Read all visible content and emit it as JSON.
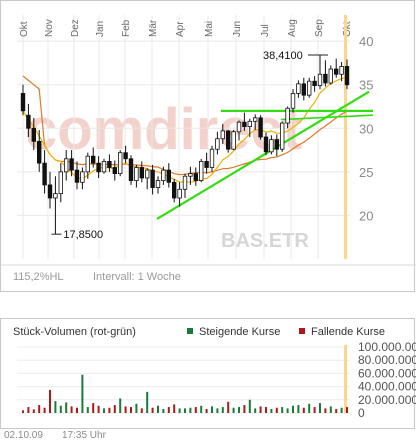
{
  "chart_data": [
    {
      "type": "candlestick",
      "months": [
        "Okt",
        "Nov",
        "Dez",
        "Jan",
        "Feb",
        "Mär",
        "Apr",
        "Mai",
        "Jun",
        "Jul",
        "Aug",
        "Sep",
        "Okt"
      ],
      "y_ticks": [
        "40",
        "35",
        "30",
        "25",
        "20"
      ],
      "ylim": [
        15,
        43
      ],
      "annotations": {
        "high": "38,4100",
        "low": "17,8500"
      },
      "watermark": {
        "brand": "comdirect",
        "symbol": "BAS.ETR"
      },
      "footer": {
        "performance": "115,2%HL",
        "interval": "Intervall: 1 Woche"
      },
      "colors": {
        "candle": "#111111",
        "ma_short": "#f0b000",
        "ma_long": "#e07a28",
        "trend": "#33dd11",
        "highlight": "#f8d890"
      },
      "candles": [
        [
          34.0,
          35.0,
          31.5,
          32.0
        ],
        [
          31.5,
          32.8,
          29.0,
          30.0
        ],
        [
          30.0,
          31.2,
          27.5,
          28.5
        ],
        [
          28.5,
          29.8,
          25.0,
          26.0
        ],
        [
          26.0,
          27.5,
          22.5,
          23.5
        ],
        [
          23.5,
          25.0,
          20.8,
          22.0
        ],
        [
          22.0,
          24.5,
          17.85,
          22.5
        ],
        [
          22.5,
          26.0,
          21.5,
          25.0
        ],
        [
          25.0,
          27.5,
          24.0,
          26.5
        ],
        [
          26.5,
          27.5,
          24.5,
          25.2
        ],
        [
          25.2,
          26.2,
          23.0,
          23.8
        ],
        [
          23.8,
          25.5,
          23.0,
          25.0
        ],
        [
          25.0,
          27.2,
          24.2,
          26.8
        ],
        [
          26.8,
          27.8,
          25.5,
          26.0
        ],
        [
          26.0,
          26.8,
          24.3,
          25.0
        ],
        [
          25.0,
          26.5,
          24.8,
          26.2
        ],
        [
          26.2,
          27.0,
          25.0,
          25.5
        ],
        [
          25.5,
          26.3,
          24.0,
          24.8
        ],
        [
          24.8,
          27.5,
          24.5,
          27.2
        ],
        [
          27.2,
          28.0,
          26.0,
          26.5
        ],
        [
          26.5,
          26.9,
          23.5,
          24.0
        ],
        [
          24.0,
          25.8,
          23.2,
          25.5
        ],
        [
          25.5,
          26.2,
          23.8,
          24.3
        ],
        [
          24.3,
          25.4,
          23.0,
          25.2
        ],
        [
          25.2,
          25.8,
          22.4,
          23.2
        ],
        [
          23.2,
          24.5,
          22.5,
          24.0
        ],
        [
          24.0,
          25.6,
          23.5,
          25.2
        ],
        [
          25.2,
          26.0,
          23.2,
          23.8
        ],
        [
          23.8,
          24.2,
          21.5,
          22.0
        ],
        [
          22.0,
          23.8,
          21.0,
          23.0
        ],
        [
          23.0,
          24.8,
          22.0,
          24.5
        ],
        [
          24.5,
          25.6,
          23.5,
          24.8
        ],
        [
          24.8,
          25.5,
          23.4,
          24.0
        ],
        [
          24.0,
          26.5,
          23.8,
          26.2
        ],
        [
          26.2,
          27.2,
          24.8,
          25.5
        ],
        [
          25.5,
          28.0,
          25.0,
          27.6
        ],
        [
          27.6,
          29.6,
          27.0,
          28.8
        ],
        [
          28.8,
          30.5,
          28.2,
          29.7
        ],
        [
          29.7,
          29.8,
          27.2,
          27.6
        ],
        [
          27.6,
          29.8,
          27.5,
          29.6
        ],
        [
          29.6,
          30.9,
          28.6,
          30.7
        ],
        [
          30.7,
          31.8,
          29.7,
          30.2
        ],
        [
          30.2,
          31.1,
          29.0,
          30.8
        ],
        [
          30.8,
          31.6,
          29.8,
          31.2
        ],
        [
          31.2,
          31.5,
          28.7,
          29.0
        ],
        [
          29.0,
          29.5,
          26.9,
          27.3
        ],
        [
          27.3,
          29.2,
          27.0,
          28.7
        ],
        [
          28.7,
          29.3,
          26.8,
          27.6
        ],
        [
          27.6,
          30.8,
          27.3,
          30.6
        ],
        [
          30.6,
          32.5,
          30.0,
          32.3
        ],
        [
          32.3,
          34.5,
          31.8,
          34.0
        ],
        [
          34.0,
          35.5,
          33.5,
          35.1
        ],
        [
          35.1,
          35.8,
          33.2,
          33.8
        ],
        [
          33.8,
          35.8,
          33.5,
          35.4
        ],
        [
          35.4,
          36.0,
          34.2,
          34.9
        ],
        [
          34.9,
          38.41,
          34.5,
          36.2
        ],
        [
          36.2,
          37.8,
          34.8,
          35.2
        ],
        [
          35.2,
          37.2,
          35.0,
          36.8
        ],
        [
          36.8,
          38.0,
          35.8,
          36.2
        ],
        [
          36.2,
          37.6,
          35.4,
          37.1
        ],
        [
          37.1,
          37.9,
          34.5,
          35.0
        ]
      ]
    },
    {
      "type": "bar",
      "title": "Stück-Volumen (rot-grün)",
      "legend": [
        {
          "name": "Steigende Kurse",
          "color": "#1a7a3a"
        },
        {
          "name": "Fallende Kurse",
          "color": "#b01818"
        }
      ],
      "y_ticks": [
        "100.000.000",
        "80.000.000",
        "60.000.000",
        "40.000.000",
        "20.000.000",
        "0"
      ],
      "ylim": [
        0,
        100000000
      ],
      "values": [
        4000000,
        9000000,
        5500000,
        12000000,
        8000000,
        35000000,
        18000000,
        11000000,
        16000000,
        10000000,
        8000000,
        58000000,
        9000000,
        15000000,
        11000000,
        7000000,
        8000000,
        12000000,
        22000000,
        10000000,
        9000000,
        14000000,
        7000000,
        32000000,
        8000000,
        11000000,
        6000000,
        9000000,
        13000000,
        7000000,
        7000000,
        8000000,
        9000000,
        11000000,
        6000000,
        10000000,
        7000000,
        9000000,
        17000000,
        8000000,
        9000000,
        12000000,
        20000000,
        7000000,
        10000000,
        9000000,
        6000000,
        8000000,
        9000000,
        7000000,
        11000000,
        12000000,
        8000000,
        14000000,
        9000000,
        15000000,
        7000000,
        10000000,
        6000000,
        8000000,
        9000000
      ]
    }
  ],
  "footer": {
    "date": "02.10.09",
    "time": "17:35 Uhr"
  }
}
